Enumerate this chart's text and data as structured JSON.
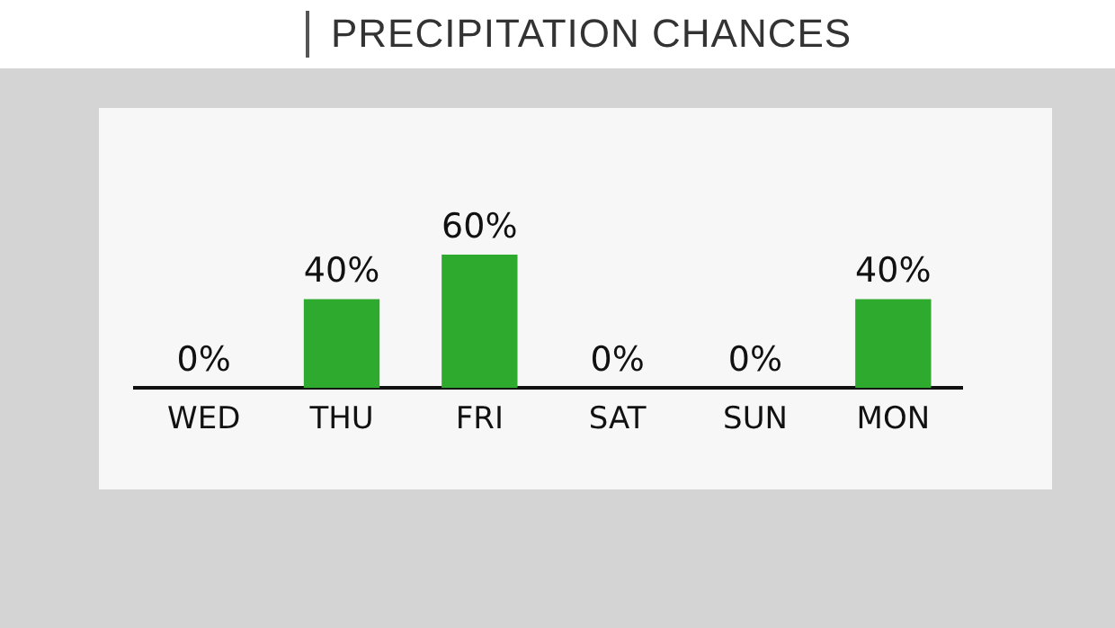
{
  "chart_data": {
    "type": "bar",
    "title": "PRECIPITATION CHANCES",
    "categories": [
      "WED",
      "THU",
      "FRI",
      "SAT",
      "SUN",
      "MON"
    ],
    "values": [
      0,
      40,
      60,
      0,
      0,
      40
    ],
    "value_labels": [
      "0%",
      "40%",
      "60%",
      "0%",
      "0%",
      "40%"
    ],
    "color": "#2eaa2e"
  }
}
